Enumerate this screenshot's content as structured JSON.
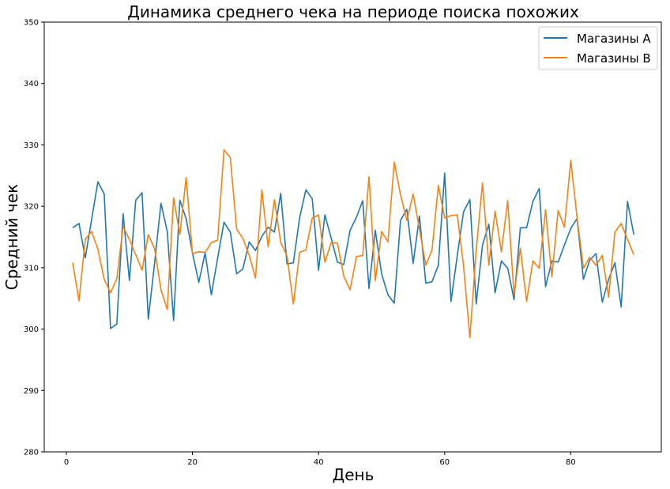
{
  "chart_data": {
    "type": "line",
    "title": "Динамика среднего чека на периоде поиска похожих",
    "xlabel": "День",
    "ylabel": "Средний чек",
    "xlim": [
      -3.5,
      94.5
    ],
    "ylim": [
      280,
      350
    ],
    "xticks": [
      0,
      20,
      40,
      60,
      80
    ],
    "yticks": [
      280,
      290,
      300,
      310,
      320,
      330,
      340,
      350
    ],
    "grid": false,
    "legend_position": "upper right",
    "x": [
      1,
      2,
      3,
      4,
      5,
      6,
      7,
      8,
      9,
      10,
      11,
      12,
      13,
      14,
      15,
      16,
      17,
      18,
      19,
      20,
      21,
      22,
      23,
      24,
      25,
      26,
      27,
      28,
      29,
      30,
      31,
      32,
      33,
      34,
      35,
      36,
      37,
      38,
      39,
      40,
      41,
      42,
      43,
      44,
      45,
      46,
      47,
      48,
      49,
      50,
      51,
      52,
      53,
      54,
      55,
      56,
      57,
      58,
      59,
      60,
      61,
      62,
      63,
      64,
      65,
      66,
      67,
      68,
      69,
      70,
      71,
      72,
      73,
      74,
      75,
      76,
      77,
      78,
      79,
      80,
      81,
      82,
      83,
      84,
      85,
      86,
      87,
      88,
      89,
      90
    ],
    "series": [
      {
        "name": "Магазины A",
        "color": "#1f77b4",
        "values": [
          316.5,
          317.2,
          311.6,
          317.8,
          324.0,
          322.0,
          300.1,
          300.8,
          318.8,
          307.9,
          321.0,
          322.2,
          301.6,
          310.8,
          320.5,
          315.9,
          301.4,
          321.0,
          318.0,
          312.4,
          307.6,
          312.4,
          305.6,
          311.6,
          317.4,
          315.8,
          309.0,
          309.8,
          314.2,
          312.8,
          315.1,
          316.6,
          315.8,
          322.1,
          310.6,
          310.8,
          318.2,
          322.7,
          321.2,
          309.6,
          318.6,
          314.8,
          310.9,
          310.5,
          316.1,
          318.2,
          320.9,
          306.6,
          316.1,
          309.0,
          305.6,
          304.2,
          317.7,
          319.5,
          310.7,
          318.4,
          307.5,
          307.7,
          310.4,
          325.4,
          304.5,
          312.0,
          319.1,
          321.1,
          304.1,
          313.7,
          317.1,
          305.9,
          311.1,
          309.9,
          304.8,
          316.5,
          316.5,
          320.8,
          322.9,
          306.9,
          311.1,
          310.9,
          313.7,
          316.4,
          318.0,
          308.1,
          311.2,
          312.3,
          304.4,
          308.1,
          310.8,
          303.6,
          320.8,
          315.4
        ]
      },
      {
        "name": "Магазины B",
        "color": "#ff7f0e",
        "values": [
          310.8,
          304.6,
          314.6,
          315.9,
          313.0,
          308.1,
          305.9,
          308.2,
          316.7,
          314.6,
          312.1,
          309.6,
          315.4,
          313.1,
          306.4,
          303.2,
          321.4,
          315.4,
          324.7,
          312.3,
          312.6,
          312.5,
          314.1,
          314.5,
          329.2,
          327.9,
          316.3,
          314.8,
          312.0,
          308.3,
          322.7,
          313.4,
          321.1,
          314.1,
          311.9,
          304.1,
          312.5,
          312.9,
          318.1,
          318.6,
          310.9,
          314.1,
          314.0,
          308.6,
          306.4,
          311.8,
          312.0,
          324.8,
          307.9,
          315.9,
          314.2,
          327.2,
          321.9,
          317.7,
          322.0,
          316.3,
          310.4,
          312.9,
          323.4,
          318.1,
          318.5,
          318.6,
          310.3,
          298.6,
          312.9,
          323.8,
          310.4,
          319.2,
          312.6,
          320.9,
          305.6,
          313.2,
          304.5,
          311.1,
          309.9,
          319.4,
          308.5,
          319.3,
          316.6,
          327.5,
          318.2,
          309.9,
          311.7,
          310.4,
          312.0,
          305.2,
          315.8,
          317.2,
          314.6,
          312.1
        ]
      }
    ]
  }
}
